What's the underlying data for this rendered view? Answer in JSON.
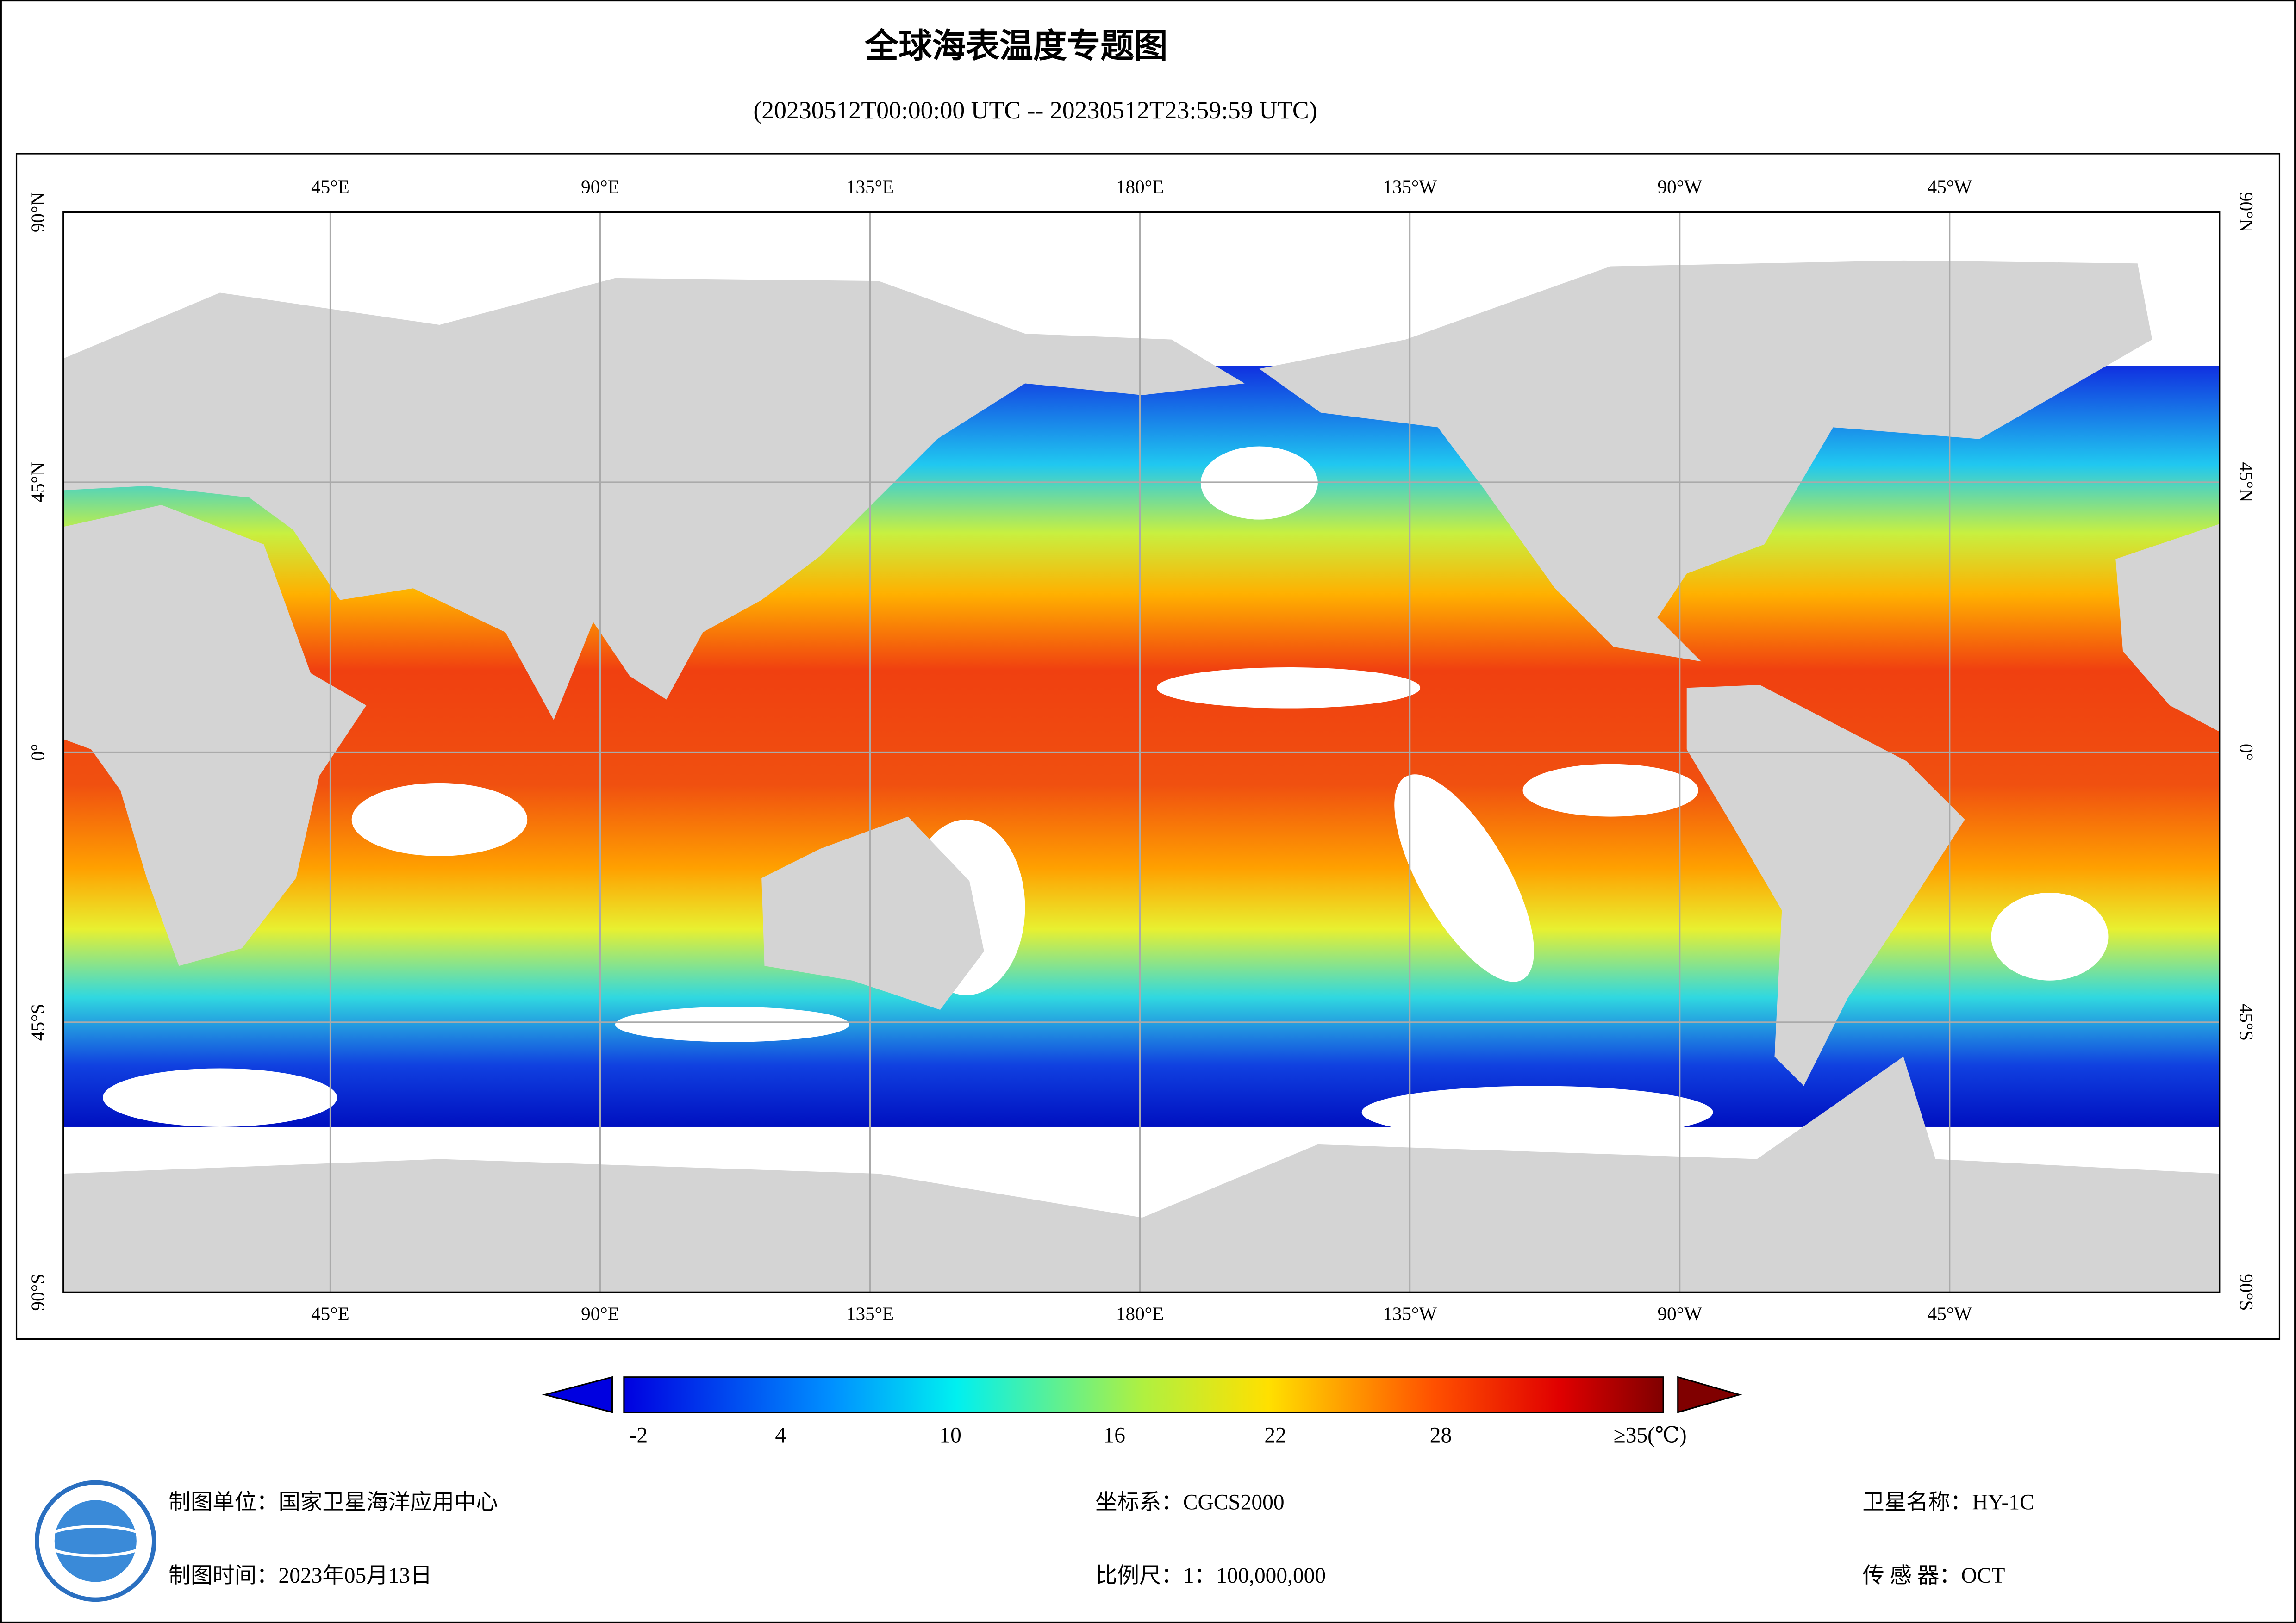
{
  "title": "全球海表温度专题图",
  "subtitle": "(20230512T00:00:00 UTC -- 20230512T23:59:59 UTC)",
  "map": {
    "longitude_labels": [
      "45°E",
      "90°E",
      "135°E",
      "180°E",
      "135°W",
      "90°W",
      "45°W"
    ],
    "latitude_labels": [
      "90°N",
      "45°N",
      "0°",
      "45°S",
      "90°S"
    ]
  },
  "colorbar": {
    "labels": [
      "-2",
      "4",
      "10",
      "16",
      "22",
      "28",
      "≥35(℃)"
    ]
  },
  "footer": {
    "unit": "制图单位：国家卫星海洋应用中心",
    "date": "制图时间：2023年05月13日",
    "crs": "坐标系：CGCS2000",
    "scale": "比例尺：1：100,000,000",
    "satellite": "卫星名称：HY-1C",
    "sensor": "传 感 器：OCT"
  }
}
